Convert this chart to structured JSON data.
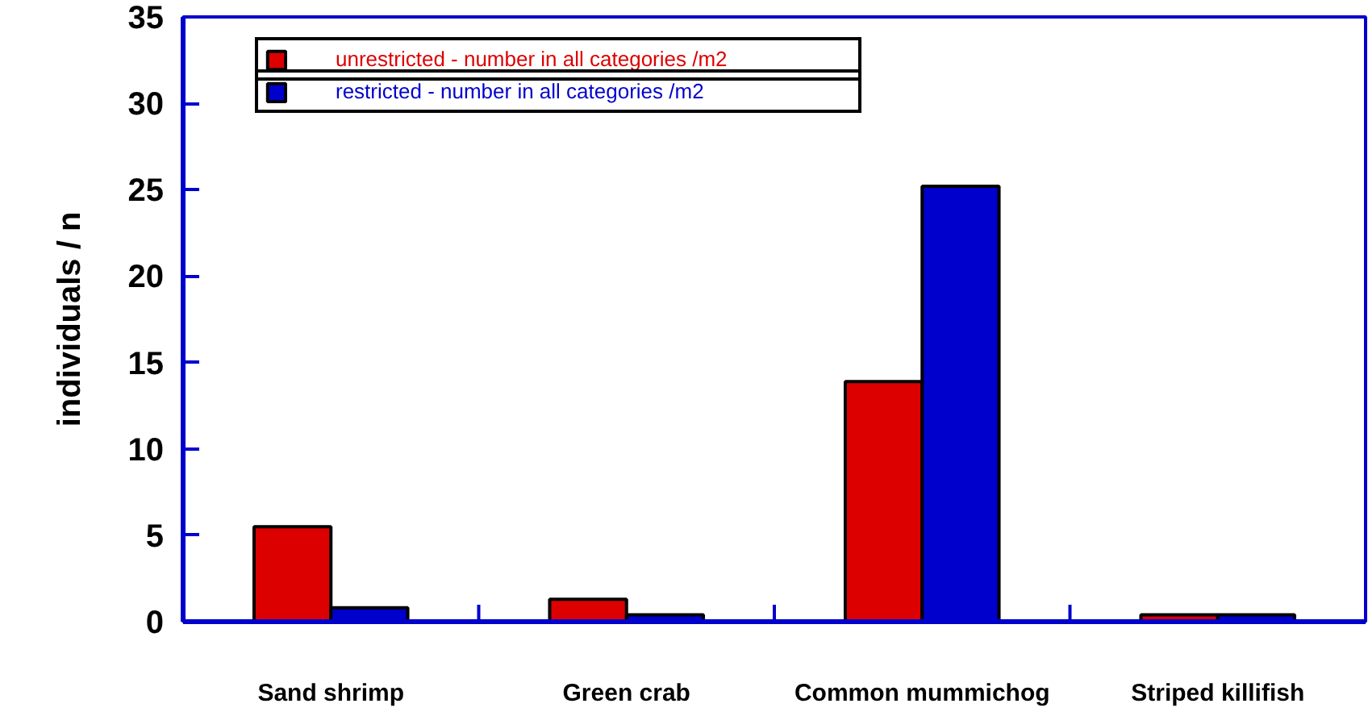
{
  "chart_data": {
    "type": "bar",
    "ylabel": "individuals / n",
    "categories": [
      "Sand shrimp",
      "Green crab",
      "Common mummichog",
      "Striped killifish"
    ],
    "series": [
      {
        "name": "unrestricted - number in all categories /m2",
        "color": "#dd0000",
        "values": [
          5.5,
          1.3,
          13.9,
          0.4
        ]
      },
      {
        "name": "restricted - number in all categories /m2",
        "color": "#0000cc",
        "values": [
          0.8,
          0.4,
          25.2,
          0.4
        ]
      }
    ],
    "ylim": [
      0,
      35
    ],
    "yticks": [
      0,
      5,
      10,
      15,
      20,
      25,
      30,
      35
    ],
    "grid": false,
    "legend": "top left"
  }
}
